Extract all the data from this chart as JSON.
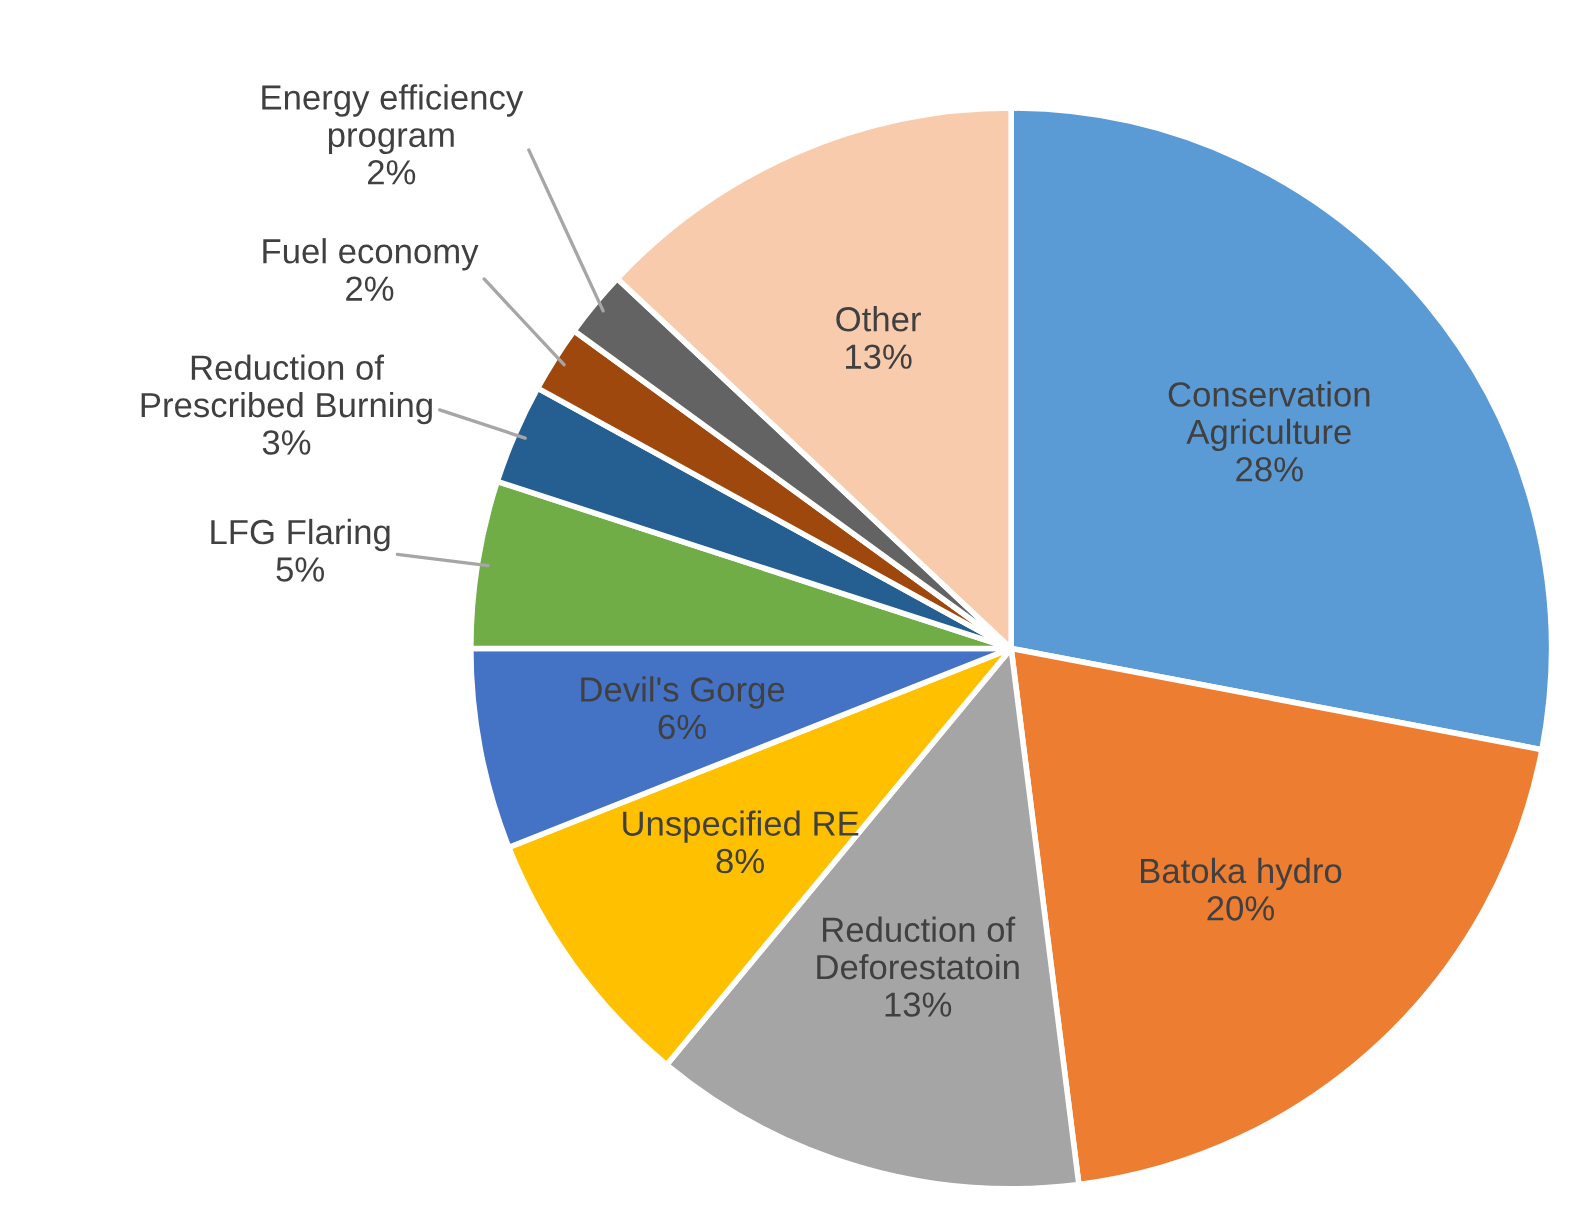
{
  "chart_data": {
    "type": "pie",
    "categories": [
      "Conservation\nAgriculture",
      "Batoka hydro",
      "Reduction of\nDeforestatoin",
      "Unspecified RE",
      "Devil's Gorge",
      "LFG Flaring",
      "Reduction of\nPrescribed Burning",
      "Fuel economy",
      "Energy efficiency\nprogram",
      "Other"
    ],
    "values": [
      28,
      20,
      13,
      8,
      6,
      5,
      3,
      2,
      2,
      13
    ],
    "colors": [
      "#5b9bd5",
      "#ed7d31",
      "#a5a5a5",
      "#ffc000",
      "#4472c4",
      "#70ad47",
      "#255e91",
      "#9e480e",
      "#636363",
      "#f8cbad"
    ],
    "value_labels": [
      "28%",
      "20%",
      "13%",
      "8%",
      "6%",
      "5%",
      "3%",
      "2%",
      "2%",
      "13%"
    ],
    "legend": false
  }
}
